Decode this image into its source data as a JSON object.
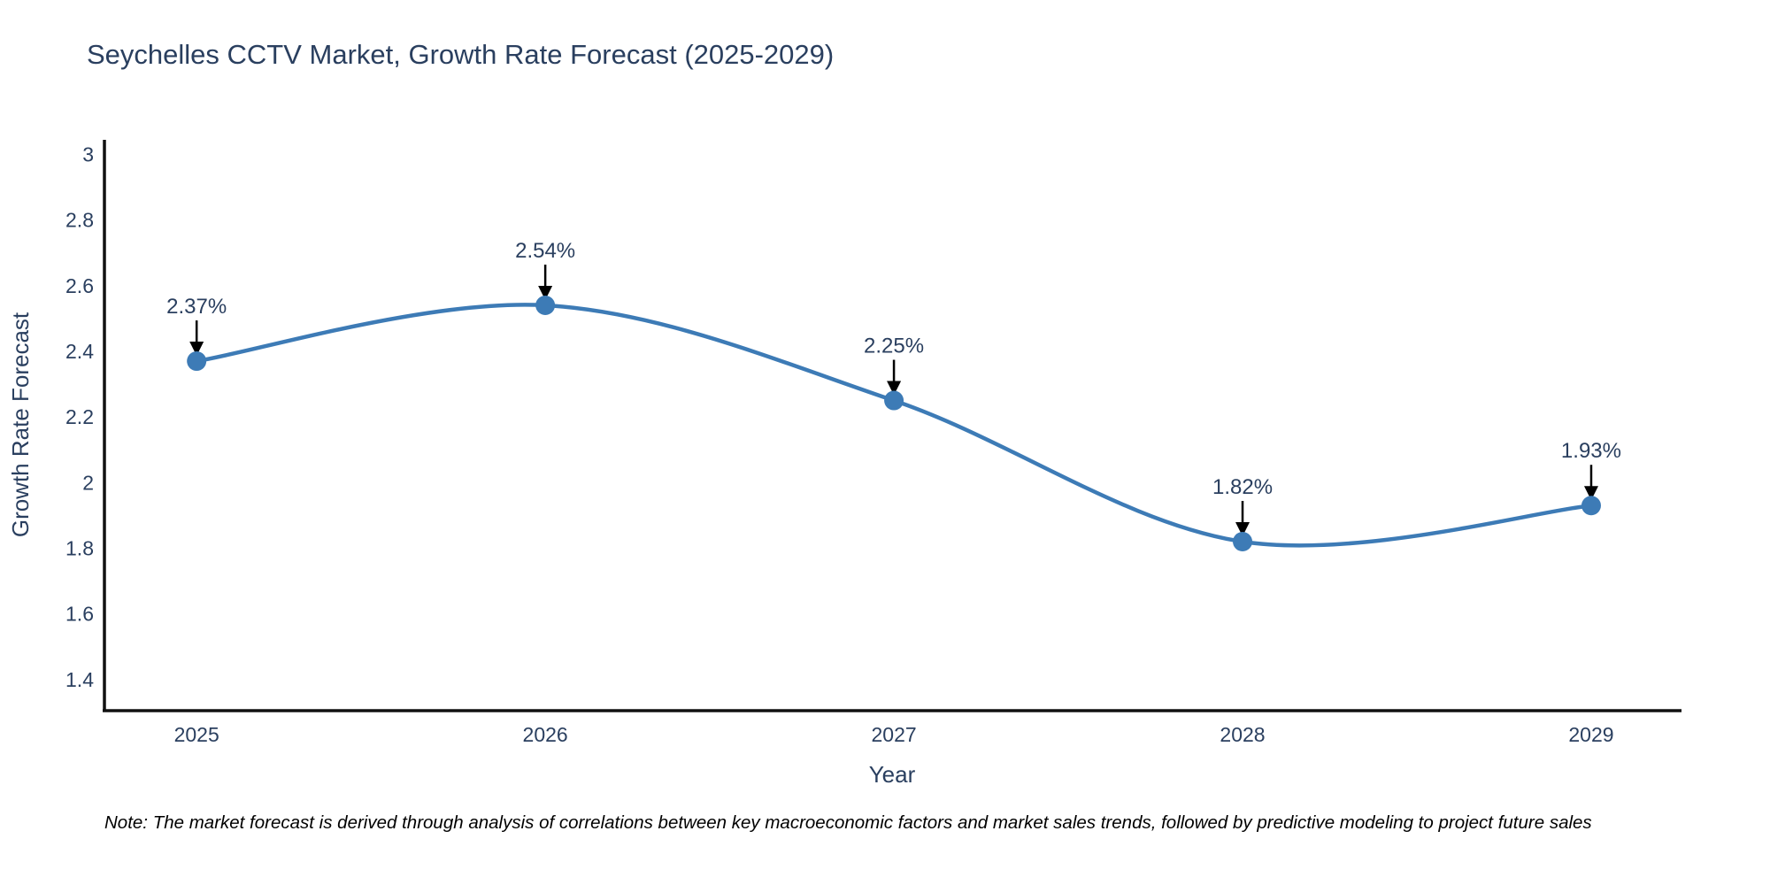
{
  "title": "Seychelles CCTV Market, Growth Rate Forecast (2025-2029)",
  "note": "Note: The market forecast is derived through analysis of correlations between key macroeconomic factors and market sales trends, followed by predictive modeling to project future sales",
  "colors": {
    "line": "#3d7bb6",
    "marker": "#3d7bb6",
    "arrow": "#000000",
    "axis": "#111111",
    "text": "#2a3f5f",
    "background": "#ffffff"
  },
  "chart_data": {
    "type": "line",
    "title": "Seychelles CCTV Market, Growth Rate Forecast (2025-2029)",
    "categories": [
      "2025",
      "2026",
      "2027",
      "2028",
      "2029"
    ],
    "x": [
      2025,
      2026,
      2027,
      2028,
      2029
    ],
    "values": [
      2.37,
      2.54,
      2.25,
      1.82,
      1.93
    ],
    "point_labels": [
      "2.37%",
      "2.54%",
      "2.25%",
      "1.82%",
      "1.93%"
    ],
    "xlabel": "Year",
    "ylabel": "Growth Rate Forecast",
    "ytick_labels": [
      "1.4",
      "1.6",
      "1.8",
      "2",
      "2.2",
      "2.4",
      "2.6",
      "2.8",
      "3"
    ],
    "yticks": [
      1.4,
      1.6,
      1.8,
      2.0,
      2.2,
      2.4,
      2.6,
      2.8,
      3.0
    ],
    "ylim": [
      1.305,
      3.047
    ],
    "xlim": [
      2024.733,
      2029.259
    ],
    "grid": false,
    "legend": false,
    "line_shape": "spline",
    "marker_size": 11,
    "annotation_style": "value labels with downward arrows above each point"
  }
}
